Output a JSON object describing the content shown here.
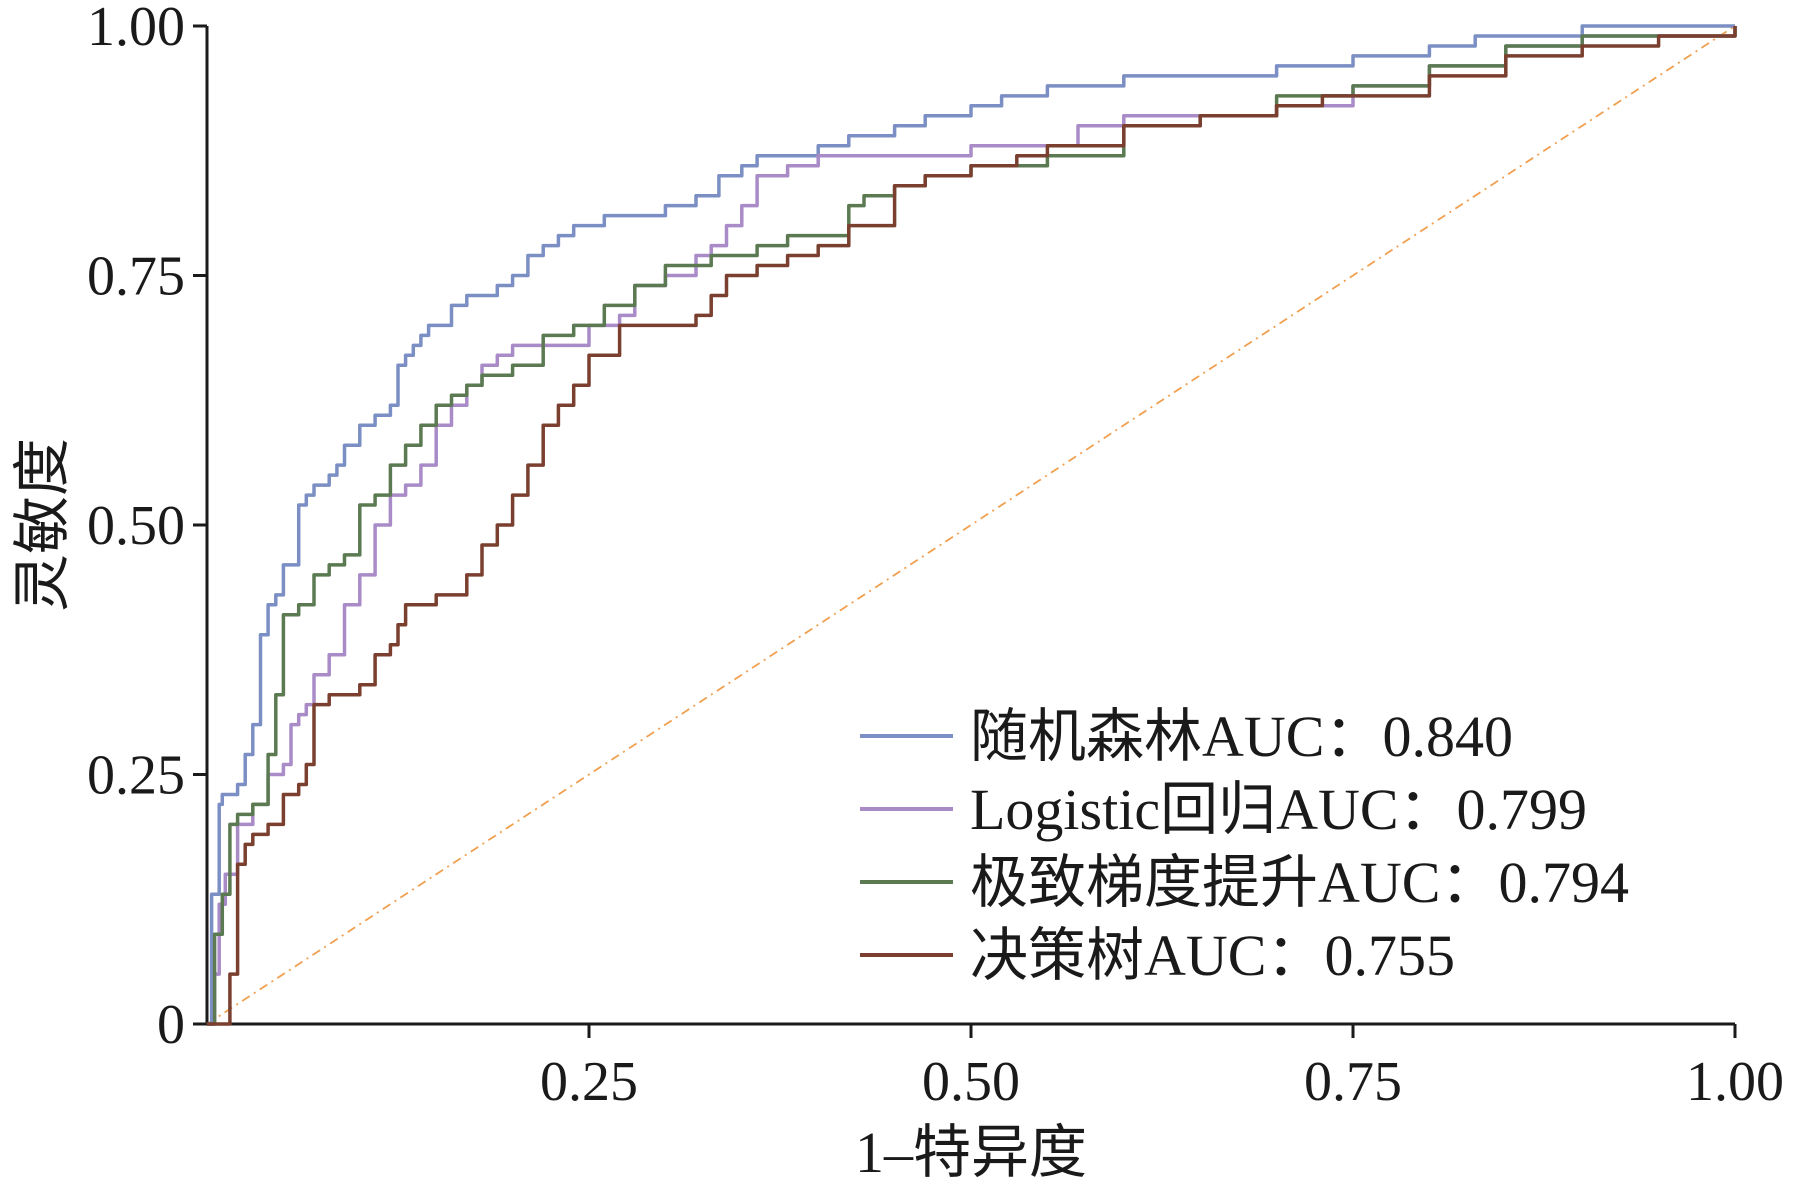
{
  "chart_data": {
    "type": "line",
    "xlabel": "1–特异度",
    "ylabel": "灵敏度",
    "xlim": [
      0,
      1
    ],
    "ylim": [
      0,
      1
    ],
    "x_ticks": [
      {
        "value": 0.25,
        "label": "0.25"
      },
      {
        "value": 0.5,
        "label": "0.50"
      },
      {
        "value": 0.75,
        "label": "0.75"
      },
      {
        "value": 1.0,
        "label": "1.00"
      }
    ],
    "y_ticks": [
      {
        "value": 0,
        "label": "0"
      },
      {
        "value": 0.25,
        "label": "0.25"
      },
      {
        "value": 0.5,
        "label": "0.50"
      },
      {
        "value": 0.75,
        "label": "0.75"
      },
      {
        "value": 1.0,
        "label": "1.00"
      }
    ],
    "legend_position": "bottom-right",
    "grid": false,
    "reference_line": {
      "x": [
        0,
        1
      ],
      "y": [
        0,
        1
      ],
      "color": "#f0a050",
      "style": "dash-dot"
    },
    "series": [
      {
        "name": "随机森林AUC：0.840",
        "color": "#7b8fc4",
        "x": [
          0,
          0.003,
          0.005,
          0.008,
          0.01,
          0.015,
          0.02,
          0.025,
          0.03,
          0.035,
          0.04,
          0.045,
          0.05,
          0.055,
          0.06,
          0.065,
          0.07,
          0.075,
          0.08,
          0.085,
          0.09,
          0.1,
          0.11,
          0.12,
          0.125,
          0.13,
          0.135,
          0.14,
          0.145,
          0.15,
          0.16,
          0.17,
          0.18,
          0.19,
          0.2,
          0.21,
          0.22,
          0.23,
          0.24,
          0.25,
          0.26,
          0.28,
          0.3,
          0.32,
          0.33,
          0.335,
          0.34,
          0.35,
          0.36,
          0.38,
          0.4,
          0.42,
          0.45,
          0.47,
          0.5,
          0.52,
          0.55,
          0.6,
          0.65,
          0.7,
          0.75,
          0.8,
          0.83,
          0.85,
          0.9,
          0.95,
          1.0
        ],
        "y": [
          0,
          0.13,
          0.13,
          0.22,
          0.23,
          0.23,
          0.24,
          0.27,
          0.3,
          0.39,
          0.42,
          0.43,
          0.46,
          0.46,
          0.52,
          0.53,
          0.54,
          0.54,
          0.55,
          0.56,
          0.58,
          0.6,
          0.61,
          0.62,
          0.66,
          0.67,
          0.68,
          0.69,
          0.7,
          0.7,
          0.72,
          0.73,
          0.73,
          0.74,
          0.75,
          0.77,
          0.78,
          0.79,
          0.8,
          0.8,
          0.81,
          0.81,
          0.82,
          0.83,
          0.83,
          0.85,
          0.85,
          0.86,
          0.87,
          0.87,
          0.88,
          0.89,
          0.9,
          0.91,
          0.92,
          0.93,
          0.94,
          0.95,
          0.95,
          0.96,
          0.97,
          0.98,
          0.99,
          0.99,
          1.0,
          1.0,
          1.0
        ]
      },
      {
        "name": "Logistic回归AUC：0.799",
        "color": "#a98bc8",
        "x": [
          0,
          0.005,
          0.008,
          0.012,
          0.02,
          0.03,
          0.04,
          0.05,
          0.055,
          0.06,
          0.065,
          0.07,
          0.08,
          0.09,
          0.1,
          0.11,
          0.12,
          0.13,
          0.14,
          0.15,
          0.16,
          0.17,
          0.18,
          0.19,
          0.2,
          0.22,
          0.25,
          0.27,
          0.28,
          0.3,
          0.32,
          0.33,
          0.34,
          0.35,
          0.36,
          0.38,
          0.4,
          0.42,
          0.45,
          0.5,
          0.55,
          0.57,
          0.6,
          0.65,
          0.7,
          0.75,
          0.8,
          0.85,
          0.9,
          0.95,
          1.0
        ],
        "y": [
          0,
          0.05,
          0.12,
          0.15,
          0.2,
          0.22,
          0.25,
          0.26,
          0.3,
          0.31,
          0.32,
          0.35,
          0.37,
          0.42,
          0.45,
          0.5,
          0.53,
          0.54,
          0.56,
          0.6,
          0.62,
          0.64,
          0.66,
          0.67,
          0.68,
          0.68,
          0.7,
          0.71,
          0.74,
          0.75,
          0.77,
          0.78,
          0.8,
          0.82,
          0.85,
          0.86,
          0.87,
          0.87,
          0.87,
          0.88,
          0.88,
          0.9,
          0.91,
          0.91,
          0.92,
          0.94,
          0.96,
          0.98,
          0.99,
          0.99,
          1.0
        ]
      },
      {
        "name": "极致梯度提升AUC：0.794",
        "color": "#5b7a52",
        "x": [
          0,
          0.005,
          0.01,
          0.015,
          0.02,
          0.03,
          0.04,
          0.045,
          0.05,
          0.06,
          0.07,
          0.08,
          0.09,
          0.1,
          0.11,
          0.12,
          0.13,
          0.14,
          0.15,
          0.16,
          0.17,
          0.18,
          0.2,
          0.22,
          0.24,
          0.26,
          0.28,
          0.3,
          0.33,
          0.36,
          0.38,
          0.4,
          0.42,
          0.43,
          0.45,
          0.47,
          0.5,
          0.55,
          0.6,
          0.65,
          0.7,
          0.75,
          0.8,
          0.85,
          0.9,
          0.95,
          1.0
        ],
        "y": [
          0,
          0.09,
          0.13,
          0.2,
          0.21,
          0.22,
          0.27,
          0.33,
          0.41,
          0.42,
          0.45,
          0.46,
          0.47,
          0.52,
          0.53,
          0.56,
          0.58,
          0.6,
          0.62,
          0.63,
          0.64,
          0.65,
          0.66,
          0.69,
          0.7,
          0.72,
          0.74,
          0.76,
          0.77,
          0.78,
          0.79,
          0.79,
          0.82,
          0.83,
          0.84,
          0.85,
          0.86,
          0.87,
          0.9,
          0.91,
          0.93,
          0.94,
          0.96,
          0.98,
          0.99,
          0.99,
          1.0
        ]
      },
      {
        "name": "决策树AUC：0.755",
        "color": "#7a3f2e",
        "x": [
          0,
          0.015,
          0.02,
          0.025,
          0.03,
          0.04,
          0.05,
          0.06,
          0.065,
          0.07,
          0.08,
          0.1,
          0.11,
          0.12,
          0.125,
          0.13,
          0.15,
          0.17,
          0.18,
          0.19,
          0.2,
          0.21,
          0.22,
          0.23,
          0.24,
          0.25,
          0.27,
          0.3,
          0.32,
          0.33,
          0.34,
          0.36,
          0.38,
          0.4,
          0.42,
          0.45,
          0.47,
          0.5,
          0.53,
          0.55,
          0.6,
          0.65,
          0.7,
          0.73,
          0.75,
          0.8,
          0.85,
          0.9,
          0.95,
          1.0
        ],
        "y": [
          0,
          0.05,
          0.16,
          0.18,
          0.19,
          0.2,
          0.23,
          0.24,
          0.26,
          0.32,
          0.33,
          0.34,
          0.37,
          0.38,
          0.4,
          0.42,
          0.43,
          0.45,
          0.48,
          0.5,
          0.53,
          0.56,
          0.6,
          0.62,
          0.64,
          0.67,
          0.7,
          0.7,
          0.71,
          0.73,
          0.75,
          0.76,
          0.77,
          0.78,
          0.8,
          0.84,
          0.85,
          0.86,
          0.87,
          0.88,
          0.9,
          0.91,
          0.92,
          0.93,
          0.93,
          0.95,
          0.97,
          0.98,
          0.99,
          1.0
        ]
      }
    ]
  }
}
